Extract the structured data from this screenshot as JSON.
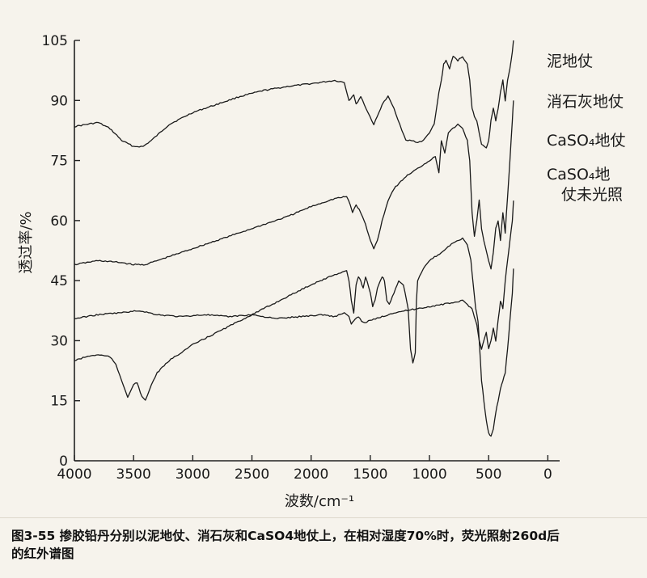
{
  "chart_data": {
    "type": "line",
    "xlabel": "波数/cm⁻¹",
    "ylabel": "透过率/%",
    "xlim": [
      4000,
      -100
    ],
    "ylim": [
      0,
      105
    ],
    "xticks": [
      4000,
      3500,
      3000,
      2500,
      2000,
      1500,
      1000,
      500,
      0
    ],
    "yticks": [
      0,
      15,
      30,
      45,
      60,
      75,
      90,
      105
    ],
    "legend_position": "right",
    "series": [
      {
        "name": "泥地仗",
        "color": "#1a1a1a",
        "points": [
          [
            4000,
            83.5
          ],
          [
            3900,
            84
          ],
          [
            3800,
            84.5
          ],
          [
            3700,
            83
          ],
          [
            3600,
            80
          ],
          [
            3500,
            78.5
          ],
          [
            3420,
            78.5
          ],
          [
            3350,
            80
          ],
          [
            3200,
            84
          ],
          [
            3000,
            87
          ],
          [
            2800,
            89
          ],
          [
            2600,
            91
          ],
          [
            2400,
            92.5
          ],
          [
            2200,
            93.5
          ],
          [
            2000,
            94.2
          ],
          [
            1800,
            95
          ],
          [
            1720,
            94.5
          ],
          [
            1680,
            90
          ],
          [
            1640,
            91.5
          ],
          [
            1620,
            89
          ],
          [
            1580,
            91
          ],
          [
            1520,
            87
          ],
          [
            1470,
            84
          ],
          [
            1440,
            86
          ],
          [
            1400,
            89
          ],
          [
            1350,
            91
          ],
          [
            1300,
            88
          ],
          [
            1250,
            84
          ],
          [
            1200,
            80
          ],
          [
            1150,
            80
          ],
          [
            1100,
            79.5
          ],
          [
            1050,
            80
          ],
          [
            1000,
            82
          ],
          [
            960,
            84
          ],
          [
            920,
            92
          ],
          [
            900,
            95
          ],
          [
            880,
            99
          ],
          [
            860,
            100
          ],
          [
            830,
            98
          ],
          [
            800,
            101
          ],
          [
            760,
            100
          ],
          [
            720,
            101
          ],
          [
            680,
            99
          ],
          [
            660,
            95
          ],
          [
            640,
            88
          ],
          [
            620,
            86
          ],
          [
            600,
            85
          ],
          [
            580,
            82
          ],
          [
            560,
            79
          ],
          [
            520,
            78
          ],
          [
            500,
            80
          ],
          [
            480,
            85
          ],
          [
            460,
            88
          ],
          [
            440,
            85
          ],
          [
            420,
            88
          ],
          [
            400,
            92
          ],
          [
            380,
            95
          ],
          [
            360,
            90
          ],
          [
            340,
            95
          ],
          [
            320,
            98
          ],
          [
            300,
            102
          ],
          [
            290,
            105
          ]
        ]
      },
      {
        "name": "消石灰地仗",
        "color": "#1a1a1a",
        "points": [
          [
            4000,
            49
          ],
          [
            3800,
            50
          ],
          [
            3600,
            49.5
          ],
          [
            3500,
            49
          ],
          [
            3400,
            49
          ],
          [
            3200,
            51
          ],
          [
            3000,
            53
          ],
          [
            2800,
            55
          ],
          [
            2600,
            57
          ],
          [
            2400,
            59
          ],
          [
            2200,
            61
          ],
          [
            2000,
            63.5
          ],
          [
            1800,
            65.5
          ],
          [
            1700,
            66
          ],
          [
            1670,
            64
          ],
          [
            1650,
            62
          ],
          [
            1620,
            64
          ],
          [
            1580,
            62
          ],
          [
            1540,
            59
          ],
          [
            1500,
            55
          ],
          [
            1470,
            53
          ],
          [
            1440,
            55
          ],
          [
            1400,
            60
          ],
          [
            1350,
            65
          ],
          [
            1300,
            68
          ],
          [
            1200,
            71
          ],
          [
            1100,
            73
          ],
          [
            1000,
            75
          ],
          [
            950,
            76
          ],
          [
            920,
            72
          ],
          [
            900,
            80
          ],
          [
            870,
            77
          ],
          [
            840,
            82
          ],
          [
            800,
            83
          ],
          [
            760,
            84
          ],
          [
            720,
            83
          ],
          [
            680,
            80
          ],
          [
            660,
            75
          ],
          [
            640,
            62
          ],
          [
            620,
            56
          ],
          [
            600,
            60
          ],
          [
            580,
            65
          ],
          [
            560,
            58
          ],
          [
            540,
            55
          ],
          [
            500,
            50
          ],
          [
            480,
            48
          ],
          [
            460,
            52
          ],
          [
            440,
            58
          ],
          [
            420,
            60
          ],
          [
            400,
            55
          ],
          [
            380,
            62
          ],
          [
            360,
            57
          ],
          [
            340,
            66
          ],
          [
            320,
            75
          ],
          [
            300,
            85
          ],
          [
            290,
            90
          ]
        ]
      },
      {
        "name": "CaSO₄地仗",
        "color": "#1a1a1a",
        "points": [
          [
            4000,
            35.5
          ],
          [
            3900,
            36
          ],
          [
            3800,
            36.5
          ],
          [
            3600,
            37
          ],
          [
            3450,
            37.5
          ],
          [
            3300,
            36.5
          ],
          [
            3100,
            36
          ],
          [
            2900,
            36.5
          ],
          [
            2700,
            36
          ],
          [
            2500,
            36.5
          ],
          [
            2300,
            35.5
          ],
          [
            2100,
            36
          ],
          [
            1900,
            36.5
          ],
          [
            1800,
            36
          ],
          [
            1720,
            37
          ],
          [
            1680,
            36
          ],
          [
            1660,
            34
          ],
          [
            1640,
            35
          ],
          [
            1600,
            36
          ],
          [
            1560,
            34.5
          ],
          [
            1500,
            35
          ],
          [
            1400,
            36
          ],
          [
            1300,
            37
          ],
          [
            1200,
            37.5
          ],
          [
            1100,
            38
          ],
          [
            1000,
            38.5
          ],
          [
            900,
            39
          ],
          [
            800,
            39.5
          ],
          [
            720,
            40
          ],
          [
            680,
            39
          ],
          [
            640,
            38
          ],
          [
            620,
            36
          ],
          [
            600,
            34
          ],
          [
            580,
            30
          ],
          [
            560,
            28
          ],
          [
            540,
            30
          ],
          [
            520,
            32
          ],
          [
            500,
            28
          ],
          [
            480,
            30
          ],
          [
            460,
            33
          ],
          [
            440,
            30
          ],
          [
            420,
            35
          ],
          [
            400,
            40
          ],
          [
            380,
            38
          ],
          [
            360,
            45
          ],
          [
            340,
            50
          ],
          [
            320,
            55
          ],
          [
            300,
            60
          ],
          [
            290,
            65
          ]
        ]
      },
      {
        "name": "CaSO₄地仗未光照",
        "color": "#1a1a1a",
        "points": [
          [
            4000,
            25
          ],
          [
            3900,
            26
          ],
          [
            3800,
            26.5
          ],
          [
            3700,
            26
          ],
          [
            3650,
            24
          ],
          [
            3600,
            20
          ],
          [
            3550,
            16
          ],
          [
            3500,
            19
          ],
          [
            3470,
            19.5
          ],
          [
            3430,
            16
          ],
          [
            3400,
            15
          ],
          [
            3350,
            19
          ],
          [
            3300,
            22
          ],
          [
            3200,
            25
          ],
          [
            3000,
            29
          ],
          [
            2800,
            32
          ],
          [
            2600,
            35
          ],
          [
            2400,
            38
          ],
          [
            2200,
            41
          ],
          [
            2000,
            44
          ],
          [
            1800,
            46.5
          ],
          [
            1750,
            47
          ],
          [
            1700,
            47.5
          ],
          [
            1680,
            45
          ],
          [
            1660,
            40
          ],
          [
            1640,
            37
          ],
          [
            1620,
            44
          ],
          [
            1600,
            46
          ],
          [
            1580,
            45
          ],
          [
            1560,
            43
          ],
          [
            1540,
            46
          ],
          [
            1500,
            42
          ],
          [
            1480,
            38.5
          ],
          [
            1460,
            40
          ],
          [
            1440,
            43
          ],
          [
            1400,
            46
          ],
          [
            1380,
            45
          ],
          [
            1360,
            40
          ],
          [
            1340,
            39
          ],
          [
            1300,
            42
          ],
          [
            1260,
            45
          ],
          [
            1220,
            44
          ],
          [
            1180,
            38
          ],
          [
            1160,
            28
          ],
          [
            1140,
            24.5
          ],
          [
            1120,
            27
          ],
          [
            1110,
            40
          ],
          [
            1100,
            45
          ],
          [
            1050,
            48
          ],
          [
            1000,
            50
          ],
          [
            900,
            52
          ],
          [
            800,
            54.5
          ],
          [
            720,
            55.5
          ],
          [
            680,
            54
          ],
          [
            650,
            50
          ],
          [
            630,
            44
          ],
          [
            610,
            38
          ],
          [
            590,
            35
          ],
          [
            580,
            30
          ],
          [
            560,
            20
          ],
          [
            540,
            15
          ],
          [
            520,
            10
          ],
          [
            500,
            7
          ],
          [
            480,
            6
          ],
          [
            460,
            8
          ],
          [
            440,
            12
          ],
          [
            420,
            15
          ],
          [
            400,
            18
          ],
          [
            380,
            20
          ],
          [
            360,
            22
          ],
          [
            340,
            28
          ],
          [
            320,
            35
          ],
          [
            300,
            42
          ],
          [
            290,
            48
          ]
        ]
      }
    ]
  },
  "caption": {
    "line1": "图3-55  掺胶铅丹分别以泥地仗、消石灰和CaSO4地仗上，在相对湿度70%时，荧光照射260d后",
    "line2": "的红外谱图"
  }
}
